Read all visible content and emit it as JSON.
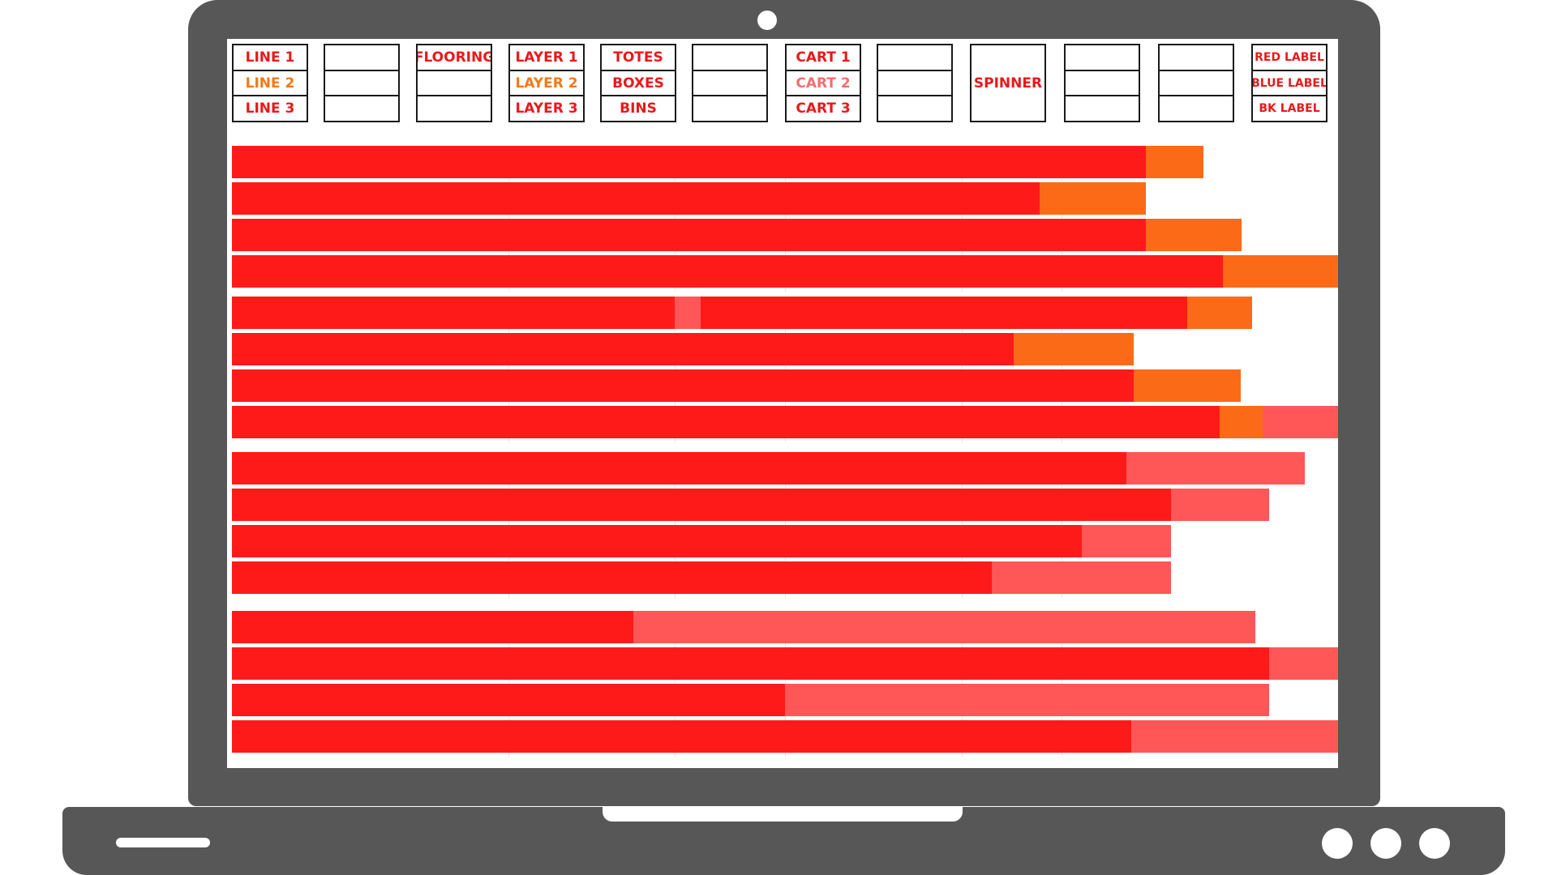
{
  "header_boxes": [
    {
      "name": "lines-box",
      "cells": [
        {
          "label": "LINE 1",
          "color": "red"
        },
        {
          "label": "LINE 2",
          "color": "orange"
        },
        {
          "label": "LINE 3",
          "color": "red"
        }
      ]
    },
    {
      "name": "empty-box-1",
      "cells": [
        {
          "label": ""
        },
        {
          "label": ""
        },
        {
          "label": ""
        }
      ]
    },
    {
      "name": "flooring-box",
      "cells": [
        {
          "label": "FLOORING",
          "color": "red"
        },
        {
          "label": ""
        },
        {
          "label": ""
        }
      ]
    },
    {
      "name": "layers-box",
      "cells": [
        {
          "label": "LAYER 1",
          "color": "red"
        },
        {
          "label": "LAYER 2",
          "color": "orange"
        },
        {
          "label": "LAYER 3",
          "color": "red"
        }
      ]
    },
    {
      "name": "containers-box",
      "cells": [
        {
          "label": "TOTES",
          "color": "red"
        },
        {
          "label": "BOXES",
          "color": "red"
        },
        {
          "label": "BINS",
          "color": "red"
        }
      ]
    },
    {
      "name": "empty-box-2",
      "cells": [
        {
          "label": ""
        },
        {
          "label": ""
        },
        {
          "label": ""
        }
      ]
    },
    {
      "name": "carts-box",
      "cells": [
        {
          "label": "CART 1",
          "color": "red"
        },
        {
          "label": "CART 2",
          "color": "salmon"
        },
        {
          "label": "CART 3",
          "color": "red"
        }
      ]
    },
    {
      "name": "empty-box-3",
      "cells": [
        {
          "label": ""
        },
        {
          "label": ""
        },
        {
          "label": ""
        }
      ]
    },
    {
      "name": "spinner-box",
      "cells": [
        {
          "label": ""
        },
        {
          "label": "SPINNER",
          "color": "red"
        },
        {
          "label": ""
        }
      ]
    },
    {
      "name": "empty-box-4",
      "cells": [
        {
          "label": ""
        },
        {
          "label": ""
        },
        {
          "label": ""
        }
      ]
    },
    {
      "name": "empty-box-5",
      "cells": [
        {
          "label": ""
        },
        {
          "label": ""
        },
        {
          "label": ""
        }
      ]
    },
    {
      "name": "labels-box",
      "cells": [
        {
          "label": "RED LABEL",
          "color": "red",
          "small": true
        },
        {
          "label": "BLUE LABEL",
          "color": "red",
          "small": true
        },
        {
          "label": "BK LABEL",
          "color": "red",
          "small": true
        }
      ]
    }
  ],
  "colors": {
    "red": "#ff1a1a",
    "orange": "#fb6b17",
    "salmon": "#ff5757",
    "lid": "#575757"
  },
  "bar_groups": [
    {
      "rows": [
        [
          {
            "type": "red",
            "value": 0.826
          },
          {
            "type": "orange",
            "value": 0.052
          }
        ],
        [
          {
            "type": "red",
            "value": 0.73
          },
          {
            "type": "orange",
            "value": 0.096
          }
        ],
        [
          {
            "type": "red",
            "value": 0.826
          },
          {
            "type": "orange",
            "value": 0.087
          }
        ],
        [
          {
            "type": "red",
            "value": 0.896
          },
          {
            "type": "orange",
            "value": 0.104
          }
        ]
      ]
    },
    {
      "rows": [
        [
          {
            "type": "red",
            "value": 0.4
          },
          {
            "type": "salmon",
            "value": 0.024
          },
          {
            "type": "red",
            "value": 0.44
          },
          {
            "type": "orange",
            "value": 0.058
          }
        ],
        [
          {
            "type": "red",
            "value": 0.707
          },
          {
            "type": "orange",
            "value": 0.108
          }
        ],
        [
          {
            "type": "red",
            "value": 0.815
          },
          {
            "type": "orange",
            "value": 0.097
          }
        ],
        [
          {
            "type": "red",
            "value": 0.893
          },
          {
            "type": "orange",
            "value": 0.039
          },
          {
            "type": "salmon",
            "value": 0.068
          }
        ]
      ]
    },
    {
      "rows": [
        [
          {
            "type": "red",
            "value": 0.809
          },
          {
            "type": "salmon",
            "value": 0.161
          }
        ],
        [
          {
            "type": "red",
            "value": 0.849
          },
          {
            "type": "salmon",
            "value": 0.089
          }
        ],
        [
          {
            "type": "red",
            "value": 0.768
          },
          {
            "type": "salmon",
            "value": 0.081
          }
        ],
        [
          {
            "type": "red",
            "value": 0.687
          },
          {
            "type": "salmon",
            "value": 0.162
          }
        ]
      ]
    },
    {
      "rows": [
        [
          {
            "type": "red",
            "value": 0.363
          },
          {
            "type": "salmon",
            "value": 0.562
          }
        ],
        [
          {
            "type": "red",
            "value": 0.938
          },
          {
            "type": "salmon",
            "value": 0.062
          }
        ],
        [
          {
            "type": "red",
            "value": 0.5
          },
          {
            "type": "salmon",
            "value": 0.438
          }
        ],
        [
          {
            "type": "red",
            "value": 0.813
          },
          {
            "type": "salmon",
            "value": 0.187
          }
        ]
      ]
    }
  ]
}
